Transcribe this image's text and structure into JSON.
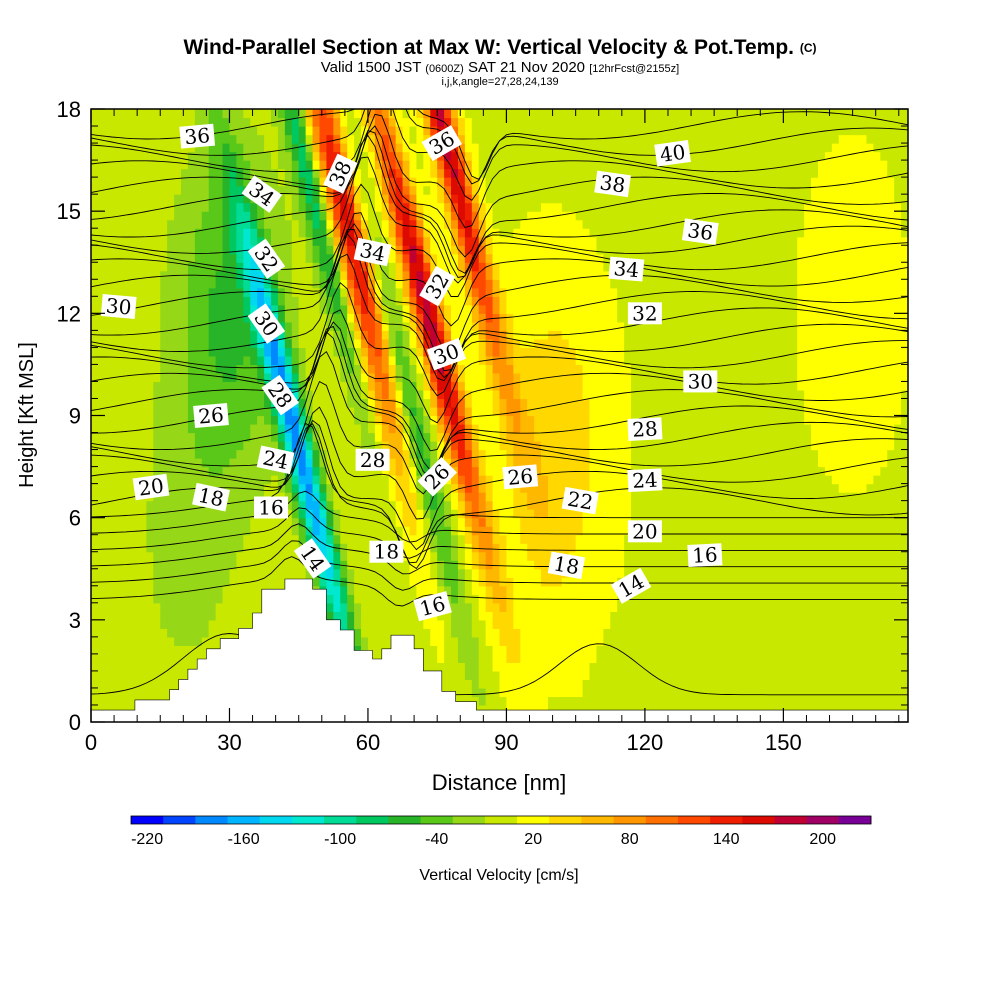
{
  "header": {
    "title": "Wind-Parallel Section at Max W: Vertical Velocity & Pot.Temp.",
    "copyright": "(C)",
    "valid_main": "Valid 1500 JST",
    "valid_z": "(0600Z)",
    "valid_date": "SAT 21 Nov 2020",
    "fcst": "[12hrFcst@2155z]",
    "indices": "i,j,k,angle=27,28,24,139"
  },
  "chart_data": {
    "type": "heatmap",
    "xlabel": "Distance [nm]",
    "ylabel": "Height [Kft MSL]",
    "xlim": [
      0,
      177
    ],
    "ylim": [
      0,
      18
    ],
    "x_ticks": [
      0,
      30,
      60,
      90,
      120,
      150
    ],
    "y_ticks": [
      0,
      3,
      6,
      9,
      12,
      15,
      18
    ],
    "colorbar": {
      "label": "Vertical Velocity [cm/s]",
      "tick_labels": [
        "-220",
        "-160",
        "-100",
        "-40",
        "20",
        "80",
        "140",
        "200"
      ],
      "levels": [
        -230,
        -210,
        -190,
        -170,
        -150,
        -130,
        -110,
        -90,
        -70,
        -50,
        -30,
        -10,
        10,
        30,
        50,
        70,
        90,
        110,
        130,
        150,
        170,
        190,
        210,
        230
      ],
      "colors": [
        "#0000ff",
        "#0044ff",
        "#0088ff",
        "#00b4ff",
        "#00d8f0",
        "#00e8d0",
        "#00dc96",
        "#00c860",
        "#28b428",
        "#5ac818",
        "#96d818",
        "#c8e800",
        "#ffff00",
        "#ffd800",
        "#ffb800",
        "#ff9600",
        "#ff7000",
        "#ff4800",
        "#f01e00",
        "#dc0a00",
        "#c00032",
        "#a00064",
        "#780096"
      ]
    },
    "background_value": 5,
    "w_features": [
      {
        "x": 50,
        "z": 15,
        "value": -210
      },
      {
        "x": 45,
        "z": 8,
        "value": -180
      },
      {
        "x": 53,
        "z": 14,
        "value": 190
      },
      {
        "x": 58,
        "z": 14,
        "value": 180
      },
      {
        "x": 67,
        "z": 10,
        "value": -120
      },
      {
        "x": 73,
        "z": 12,
        "value": 180
      },
      {
        "x": 77,
        "z": 17,
        "value": 170
      },
      {
        "x": 30,
        "z": 12,
        "value": -60
      },
      {
        "x": 20,
        "z": 5,
        "value": -20
      },
      {
        "x": 100,
        "z": 8,
        "value": 40
      },
      {
        "x": 165,
        "z": 12,
        "value": 15
      }
    ],
    "terrain": [
      {
        "x": 0,
        "z": 0.35
      },
      {
        "x": 9.5,
        "z": 0.35
      },
      {
        "x": 9.5,
        "z": 0.65
      },
      {
        "x": 17,
        "z": 0.65
      },
      {
        "x": 17,
        "z": 0.95
      },
      {
        "x": 19,
        "z": 0.95
      },
      {
        "x": 19,
        "z": 1.25
      },
      {
        "x": 21,
        "z": 1.25
      },
      {
        "x": 21,
        "z": 1.55
      },
      {
        "x": 23,
        "z": 1.55
      },
      {
        "x": 23,
        "z": 1.85
      },
      {
        "x": 25,
        "z": 1.85
      },
      {
        "x": 25,
        "z": 2.15
      },
      {
        "x": 28,
        "z": 2.15
      },
      {
        "x": 28,
        "z": 2.45
      },
      {
        "x": 32,
        "z": 2.45
      },
      {
        "x": 32,
        "z": 2.75
      },
      {
        "x": 35,
        "z": 2.75
      },
      {
        "x": 35,
        "z": 3.2
      },
      {
        "x": 37,
        "z": 3.2
      },
      {
        "x": 37,
        "z": 3.9
      },
      {
        "x": 42,
        "z": 3.9
      },
      {
        "x": 42,
        "z": 4.2
      },
      {
        "x": 48,
        "z": 4.2
      },
      {
        "x": 48,
        "z": 3.9
      },
      {
        "x": 51,
        "z": 3.9
      },
      {
        "x": 51,
        "z": 3.0
      },
      {
        "x": 54,
        "z": 3.0
      },
      {
        "x": 54,
        "z": 2.7
      },
      {
        "x": 57,
        "z": 2.7
      },
      {
        "x": 57,
        "z": 2.1
      },
      {
        "x": 61,
        "z": 2.1
      },
      {
        "x": 61,
        "z": 1.85
      },
      {
        "x": 63,
        "z": 1.85
      },
      {
        "x": 63,
        "z": 2.15
      },
      {
        "x": 65,
        "z": 2.15
      },
      {
        "x": 65,
        "z": 2.55
      },
      {
        "x": 70,
        "z": 2.55
      },
      {
        "x": 70,
        "z": 2.15
      },
      {
        "x": 72,
        "z": 2.15
      },
      {
        "x": 72,
        "z": 1.5
      },
      {
        "x": 76,
        "z": 1.5
      },
      {
        "x": 76,
        "z": 0.9
      },
      {
        "x": 79,
        "z": 0.9
      },
      {
        "x": 79,
        "z": 0.6
      },
      {
        "x": 83.5,
        "z": 0.6
      },
      {
        "x": 83.5,
        "z": 0.35
      },
      {
        "x": 177,
        "z": 0.35
      }
    ],
    "theta_labels": [
      {
        "text": "36",
        "x": 23,
        "z": 17.2,
        "rot": -5
      },
      {
        "text": "34",
        "x": 37,
        "z": 15.5,
        "rot": 35
      },
      {
        "text": "32",
        "x": 38,
        "z": 13.6,
        "rot": 55
      },
      {
        "text": "30",
        "x": 38,
        "z": 11.7,
        "rot": 55
      },
      {
        "text": "28",
        "x": 41,
        "z": 9.6,
        "rot": 55
      },
      {
        "text": "26",
        "x": 26,
        "z": 9.0,
        "rot": -5
      },
      {
        "text": "24",
        "x": 40,
        "z": 7.7,
        "rot": 12
      },
      {
        "text": "20",
        "x": 13,
        "z": 6.9,
        "rot": -8
      },
      {
        "text": "18",
        "x": 26,
        "z": 6.6,
        "rot": 12
      },
      {
        "text": "16",
        "x": 39,
        "z": 6.3,
        "rot": 0
      },
      {
        "text": "14",
        "x": 48,
        "z": 4.8,
        "rot": 55
      },
      {
        "text": "30",
        "x": 6,
        "z": 12.2,
        "rot": 5
      },
      {
        "text": "38",
        "x": 54,
        "z": 16.1,
        "rot": -65
      },
      {
        "text": "34",
        "x": 61,
        "z": 13.8,
        "rot": 12
      },
      {
        "text": "28",
        "x": 61,
        "z": 7.7,
        "rot": 0
      },
      {
        "text": "18",
        "x": 64,
        "z": 5.0,
        "rot": 0
      },
      {
        "text": "36",
        "x": 76,
        "z": 17.0,
        "rot": -30
      },
      {
        "text": "32",
        "x": 75,
        "z": 12.8,
        "rot": -60
      },
      {
        "text": "30",
        "x": 77,
        "z": 10.8,
        "rot": -20
      },
      {
        "text": "26",
        "x": 75,
        "z": 7.2,
        "rot": -45
      },
      {
        "text": "16",
        "x": 74,
        "z": 3.4,
        "rot": -15
      },
      {
        "text": "26",
        "x": 93,
        "z": 7.2,
        "rot": -5
      },
      {
        "text": "22",
        "x": 106,
        "z": 6.5,
        "rot": 10
      },
      {
        "text": "18",
        "x": 103,
        "z": 4.6,
        "rot": 10
      },
      {
        "text": "14",
        "x": 117,
        "z": 4.0,
        "rot": -30
      },
      {
        "text": "40",
        "x": 126,
        "z": 16.7,
        "rot": -8
      },
      {
        "text": "38",
        "x": 113,
        "z": 15.8,
        "rot": 8
      },
      {
        "text": "36",
        "x": 132,
        "z": 14.4,
        "rot": 8
      },
      {
        "text": "34",
        "x": 116,
        "z": 13.3,
        "rot": 5
      },
      {
        "text": "32",
        "x": 120,
        "z": 12.0,
        "rot": 0
      },
      {
        "text": "30",
        "x": 132,
        "z": 10.0,
        "rot": 0
      },
      {
        "text": "28",
        "x": 120,
        "z": 8.6,
        "rot": -3
      },
      {
        "text": "24",
        "x": 120,
        "z": 7.1,
        "rot": -3
      },
      {
        "text": "20",
        "x": 120,
        "z": 5.6,
        "rot": 0
      },
      {
        "text": "16",
        "x": 133,
        "z": 4.9,
        "rot": -3
      }
    ]
  }
}
